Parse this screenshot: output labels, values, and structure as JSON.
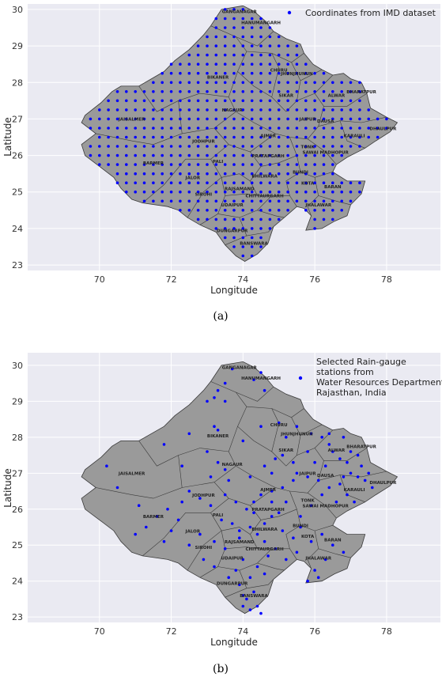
{
  "colors": {
    "plot_background": "#eaeaf2",
    "grid": "#ffffff",
    "state_fill": "#9a9a9a",
    "state_edge": "#3a3a3a",
    "point": "#0000ff"
  },
  "chart_data": [
    {
      "type": "scatter",
      "caption": "(a)",
      "xlabel": "Longitude",
      "ylabel": "Latitude",
      "xlim": [
        68,
        79.5
      ],
      "ylim": [
        22.85,
        30.15
      ],
      "xticks": [
        70,
        72,
        74,
        76,
        78
      ],
      "yticks": [
        23,
        24,
        25,
        26,
        27,
        28,
        29,
        30
      ],
      "grid": true,
      "legend": {
        "placement": "top-right",
        "entries": [
          "Coordinates from IMD dataset"
        ]
      },
      "district_labels": [
        {
          "name": "GANGANAGAR",
          "lon": 73.9,
          "lat": 29.9
        },
        {
          "name": "HANUMANGARH",
          "lon": 74.5,
          "lat": 29.6
        },
        {
          "name": "CHURU",
          "lon": 75.0,
          "lat": 28.3
        },
        {
          "name": "JHUNJHUNUN",
          "lon": 75.5,
          "lat": 28.2
        },
        {
          "name": "BIKANER",
          "lon": 73.3,
          "lat": 28.1
        },
        {
          "name": "ALWAR",
          "lon": 76.6,
          "lat": 27.6
        },
        {
          "name": "BHARATPUR",
          "lon": 77.3,
          "lat": 27.7
        },
        {
          "name": "SIKAR",
          "lon": 75.2,
          "lat": 27.6
        },
        {
          "name": "NAGAUR",
          "lon": 73.7,
          "lat": 27.2
        },
        {
          "name": "JAISALMER",
          "lon": 70.9,
          "lat": 26.95
        },
        {
          "name": "JAIPUR",
          "lon": 75.8,
          "lat": 26.95
        },
        {
          "name": "DAUSA",
          "lon": 76.3,
          "lat": 26.9
        },
        {
          "name": "DHAULPUR",
          "lon": 77.9,
          "lat": 26.7
        },
        {
          "name": "KARAULI",
          "lon": 77.1,
          "lat": 26.5
        },
        {
          "name": "AJMER",
          "lon": 74.7,
          "lat": 26.5
        },
        {
          "name": "JODHPUR",
          "lon": 72.9,
          "lat": 26.35
        },
        {
          "name": "TONK",
          "lon": 75.8,
          "lat": 26.2
        },
        {
          "name": "SAWAI MADHOPUR",
          "lon": 76.3,
          "lat": 26.05
        },
        {
          "name": "PRATAPGARH",
          "lon": 74.7,
          "lat": 25.95
        },
        {
          "name": "PALI",
          "lon": 73.3,
          "lat": 25.8
        },
        {
          "name": "BARMER",
          "lon": 71.5,
          "lat": 25.75
        },
        {
          "name": "BHILWARA",
          "lon": 74.6,
          "lat": 25.4
        },
        {
          "name": "BUNDI",
          "lon": 75.6,
          "lat": 25.5
        },
        {
          "name": "JALOR",
          "lon": 72.6,
          "lat": 25.35
        },
        {
          "name": "KOTA",
          "lon": 75.8,
          "lat": 25.2
        },
        {
          "name": "BARAN",
          "lon": 76.5,
          "lat": 25.1
        },
        {
          "name": "SIROHI",
          "lon": 72.9,
          "lat": 24.9
        },
        {
          "name": "RAJSAMAND",
          "lon": 73.9,
          "lat": 25.05
        },
        {
          "name": "CHITTAURGARH",
          "lon": 74.6,
          "lat": 24.85
        },
        {
          "name": "UDAIPUR",
          "lon": 73.7,
          "lat": 24.6
        },
        {
          "name": "JHALAWAR",
          "lon": 76.1,
          "lat": 24.6
        },
        {
          "name": "DUNGARPUR",
          "lon": 73.7,
          "lat": 23.9
        },
        {
          "name": "BANSWARA",
          "lon": 74.3,
          "lat": 23.55
        }
      ]
    },
    {
      "type": "scatter",
      "caption": "(b)",
      "xlabel": "Longitude",
      "ylabel": "Latitude",
      "xlim": [
        68,
        79.5
      ],
      "ylim": [
        22.85,
        30.35
      ],
      "xticks": [
        70,
        72,
        74,
        76,
        78
      ],
      "yticks": [
        23,
        24,
        25,
        26,
        27,
        28,
        29,
        30
      ],
      "grid": true,
      "legend": {
        "placement": "top-right",
        "entries": [
          "Selected Rain-gauge stations from Water Resources Department, Rajasthan, India"
        ],
        "lines": [
          "Selected Rain-gauge",
          "stations from",
          "Water Resources Department,",
          "Rajasthan, India"
        ]
      },
      "district_labels": [
        {
          "name": "GANGANAGAR",
          "lon": 73.9,
          "lat": 29.9
        },
        {
          "name": "HANUMANGARH",
          "lon": 74.5,
          "lat": 29.6
        },
        {
          "name": "CHURU",
          "lon": 75.0,
          "lat": 28.3
        },
        {
          "name": "JHUNJHUNUN",
          "lon": 75.5,
          "lat": 28.05
        },
        {
          "name": "BIKANER",
          "lon": 73.3,
          "lat": 28.0
        },
        {
          "name": "BHARATPUR",
          "lon": 77.3,
          "lat": 27.7
        },
        {
          "name": "ALWAR",
          "lon": 76.6,
          "lat": 27.6
        },
        {
          "name": "SIKAR",
          "lon": 75.2,
          "lat": 27.6
        },
        {
          "name": "NAGAUR",
          "lon": 73.7,
          "lat": 27.2
        },
        {
          "name": "JAISALMER",
          "lon": 70.9,
          "lat": 26.95
        },
        {
          "name": "JAIPUR",
          "lon": 75.8,
          "lat": 26.95
        },
        {
          "name": "DAUSA",
          "lon": 76.3,
          "lat": 26.9
        },
        {
          "name": "DHAULPUR",
          "lon": 77.9,
          "lat": 26.7
        },
        {
          "name": "AJMER",
          "lon": 74.7,
          "lat": 26.5
        },
        {
          "name": "KARAULI",
          "lon": 77.1,
          "lat": 26.5
        },
        {
          "name": "JODHPUR",
          "lon": 72.9,
          "lat": 26.35
        },
        {
          "name": "TONK",
          "lon": 75.8,
          "lat": 26.2
        },
        {
          "name": "SAWAI MADHOPUR",
          "lon": 76.3,
          "lat": 26.05
        },
        {
          "name": "PRATAPGARH",
          "lon": 74.7,
          "lat": 25.95
        },
        {
          "name": "PALI",
          "lon": 73.3,
          "lat": 25.8
        },
        {
          "name": "BARMER",
          "lon": 71.5,
          "lat": 25.75
        },
        {
          "name": "BHILWARA",
          "lon": 74.6,
          "lat": 25.4
        },
        {
          "name": "BUNDI",
          "lon": 75.6,
          "lat": 25.5
        },
        {
          "name": "JALOR",
          "lon": 72.6,
          "lat": 25.35
        },
        {
          "name": "KOTA",
          "lon": 75.8,
          "lat": 25.2
        },
        {
          "name": "BARAN",
          "lon": 76.5,
          "lat": 25.1
        },
        {
          "name": "SIROHI",
          "lon": 72.9,
          "lat": 24.9
        },
        {
          "name": "RAJSAMAND",
          "lon": 73.9,
          "lat": 25.05
        },
        {
          "name": "CHITTAURGARH",
          "lon": 74.6,
          "lat": 24.85
        },
        {
          "name": "UDAIPUR",
          "lon": 73.7,
          "lat": 24.6
        },
        {
          "name": "JHALAWAR",
          "lon": 76.1,
          "lat": 24.6
        },
        {
          "name": "DUNGARPUR",
          "lon": 73.7,
          "lat": 23.9
        },
        {
          "name": "BANSWARA",
          "lon": 74.3,
          "lat": 23.55
        }
      ],
      "points": [
        [
          73.7,
          29.9
        ],
        [
          74.3,
          29.6
        ],
        [
          73.3,
          29.3
        ],
        [
          73.5,
          29.5
        ],
        [
          73.2,
          29.1
        ],
        [
          73.0,
          29.0
        ],
        [
          73.5,
          29.0
        ],
        [
          74.5,
          29.8
        ],
        [
          74.6,
          29.3
        ],
        [
          73.2,
          28.3
        ],
        [
          73.3,
          28.2
        ],
        [
          74.5,
          28.3
        ],
        [
          75.0,
          28.4
        ],
        [
          75.5,
          28.3
        ],
        [
          75.2,
          28.0
        ],
        [
          75.9,
          28.1
        ],
        [
          76.2,
          28.0
        ],
        [
          76.4,
          28.1
        ],
        [
          76.8,
          28.0
        ],
        [
          72.5,
          28.1
        ],
        [
          71.8,
          27.8
        ],
        [
          72.3,
          27.2
        ],
        [
          73.3,
          27.3
        ],
        [
          73.5,
          27.1
        ],
        [
          73.1,
          26.9
        ],
        [
          73.6,
          26.8
        ],
        [
          74.2,
          26.9
        ],
        [
          74.6,
          27.2
        ],
        [
          74.8,
          27.0
        ],
        [
          75.1,
          27.5
        ],
        [
          75.4,
          27.3
        ],
        [
          75.8,
          27.6
        ],
        [
          76.0,
          27.3
        ],
        [
          76.3,
          27.2
        ],
        [
          76.5,
          27.6
        ],
        [
          76.7,
          27.4
        ],
        [
          76.9,
          27.3
        ],
        [
          77.0,
          27.6
        ],
        [
          77.2,
          27.5
        ],
        [
          77.3,
          27.2
        ],
        [
          77.5,
          27.0
        ],
        [
          77.0,
          27.0
        ],
        [
          76.7,
          26.7
        ],
        [
          76.4,
          26.6
        ],
        [
          76.1,
          26.8
        ],
        [
          75.8,
          26.9
        ],
        [
          75.4,
          26.8
        ],
        [
          75.1,
          26.6
        ],
        [
          74.8,
          26.5
        ],
        [
          74.5,
          26.4
        ],
        [
          74.3,
          26.2
        ],
        [
          74.1,
          26.0
        ],
        [
          73.8,
          26.2
        ],
        [
          73.5,
          26.4
        ],
        [
          73.1,
          26.1
        ],
        [
          72.8,
          26.3
        ],
        [
          72.3,
          26.2
        ],
        [
          71.9,
          26.0
        ],
        [
          71.6,
          25.8
        ],
        [
          71.3,
          25.5
        ],
        [
          71.0,
          25.3
        ],
        [
          70.2,
          27.2
        ],
        [
          70.5,
          26.6
        ],
        [
          71.1,
          26.1
        ],
        [
          72.0,
          25.4
        ],
        [
          72.5,
          25.0
        ],
        [
          72.8,
          25.3
        ],
        [
          73.2,
          25.1
        ],
        [
          73.5,
          24.9
        ],
        [
          73.9,
          25.2
        ],
        [
          74.2,
          25.5
        ],
        [
          74.4,
          25.3
        ],
        [
          74.6,
          25.6
        ],
        [
          74.8,
          25.8
        ],
        [
          75.1,
          25.4
        ],
        [
          75.4,
          25.2
        ],
        [
          75.6,
          25.5
        ],
        [
          75.9,
          25.1
        ],
        [
          76.2,
          25.3
        ],
        [
          76.5,
          25.0
        ],
        [
          76.8,
          24.8
        ],
        [
          76.3,
          24.6
        ],
        [
          76.0,
          24.3
        ],
        [
          75.8,
          24.0
        ],
        [
          76.1,
          24.1
        ],
        [
          75.6,
          25.8
        ],
        [
          75.9,
          26.1
        ],
        [
          76.2,
          26.4
        ],
        [
          76.6,
          26.2
        ],
        [
          76.9,
          26.4
        ],
        [
          77.1,
          26.2
        ],
        [
          74.0,
          24.6
        ],
        [
          73.8,
          24.3
        ],
        [
          73.6,
          24.1
        ],
        [
          73.9,
          23.9
        ],
        [
          74.2,
          24.1
        ],
        [
          74.4,
          24.4
        ],
        [
          74.6,
          24.2
        ],
        [
          74.3,
          23.7
        ],
        [
          74.1,
          23.5
        ],
        [
          74.0,
          23.3
        ],
        [
          74.2,
          23.2
        ],
        [
          74.4,
          23.3
        ],
        [
          74.0,
          23.6
        ],
        [
          74.5,
          23.1
        ],
        [
          74.7,
          24.7
        ],
        [
          74.9,
          24.9
        ],
        [
          75.2,
          24.6
        ],
        [
          75.5,
          24.8
        ],
        [
          72.9,
          24.6
        ],
        [
          73.2,
          24.4
        ],
        [
          71.8,
          25.1
        ],
        [
          72.2,
          25.7
        ],
        [
          72.5,
          26.5
        ],
        [
          73.0,
          27.6
        ],
        [
          74.0,
          27.9
        ],
        [
          75.2,
          26.2
        ],
        [
          75.0,
          25.9
        ],
        [
          74.6,
          25.1
        ],
        [
          74.3,
          25.9
        ],
        [
          73.7,
          25.6
        ],
        [
          73.4,
          25.7
        ],
        [
          77.4,
          26.8
        ],
        [
          77.6,
          26.6
        ],
        [
          77.2,
          26.9
        ],
        [
          76.8,
          26.9
        ],
        [
          75.5,
          27.0
        ],
        [
          74.9,
          27.4
        ],
        [
          76.4,
          27.8
        ],
        [
          73.9,
          25.4
        ],
        [
          74.8,
          26.2
        ]
      ]
    }
  ]
}
